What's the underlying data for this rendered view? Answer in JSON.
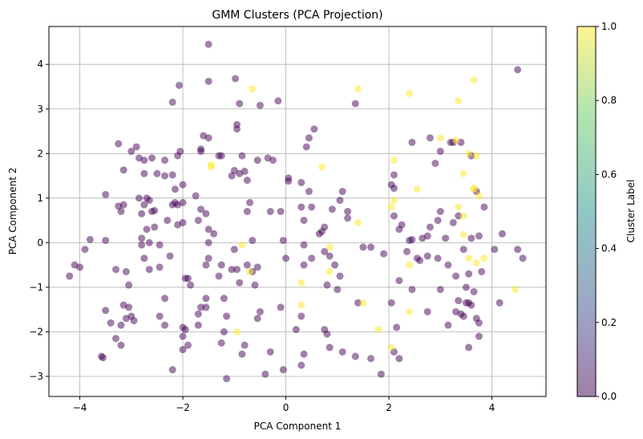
{
  "chart_data": {
    "type": "scatter",
    "title": "GMM Clusters (PCA Projection)",
    "xlabel": "PCA Component 1",
    "ylabel": "PCA Component 2",
    "xlim": [
      -4.6,
      5.05
    ],
    "ylim": [
      -3.45,
      4.85
    ],
    "xticks": [
      -4,
      -2,
      0,
      2,
      4
    ],
    "yticks": [
      -3,
      -2,
      -1,
      0,
      1,
      2,
      3,
      4
    ],
    "grid": true,
    "colorbar": {
      "label": "Cluster Label",
      "range": [
        0,
        1
      ],
      "ticks": [
        "0.0",
        "0.2",
        "0.4",
        "0.6",
        "0.8",
        "1.0"
      ],
      "colormap": "viridis",
      "alpha": 0.5
    },
    "colors": {
      "cluster_0": "#440154",
      "cluster_1": "#fde725"
    },
    "series": [
      {
        "name": "0",
        "points": [
          [
            -1.5,
            4.45
          ],
          [
            -0.98,
            3.68
          ],
          [
            -1.5,
            3.62
          ],
          [
            -2.07,
            3.53
          ],
          [
            -4.2,
            -0.75
          ],
          [
            -4.1,
            -0.5
          ],
          [
            -4.0,
            -0.55
          ],
          [
            -3.9,
            -0.15
          ],
          [
            -3.8,
            0.07
          ],
          [
            -3.5,
            1.08
          ],
          [
            -3.5,
            0.05
          ],
          [
            -3.5,
            -1.52
          ],
          [
            -3.4,
            -1.8
          ],
          [
            -3.58,
            -2.55
          ],
          [
            -3.55,
            -2.58
          ],
          [
            -3.3,
            -2.15
          ],
          [
            -3.2,
            -1.85
          ],
          [
            -3.2,
            -2.3
          ],
          [
            -3.15,
            -1.4
          ],
          [
            -3.1,
            -1.7
          ],
          [
            -3.05,
            -1.45
          ],
          [
            -3.0,
            -1.65
          ],
          [
            -2.95,
            -1.75
          ],
          [
            -3.25,
            0.82
          ],
          [
            -3.2,
            0.7
          ],
          [
            -3.15,
            0.85
          ],
          [
            -3.3,
            -0.6
          ],
          [
            -3.1,
            -0.65
          ],
          [
            -3.05,
            -0.95
          ],
          [
            -3.25,
            2.22
          ],
          [
            -3.0,
            2.05
          ],
          [
            -3.15,
            1.63
          ],
          [
            -2.9,
            2.15
          ],
          [
            -2.85,
            1.9
          ],
          [
            -2.75,
            1.85
          ],
          [
            -2.6,
            1.9
          ],
          [
            -2.75,
            1.55
          ],
          [
            -2.5,
            1.55
          ],
          [
            -2.35,
            1.85
          ],
          [
            -2.2,
            1.52
          ],
          [
            -2.1,
            1.95
          ],
          [
            -2.05,
            2.05
          ],
          [
            -2.35,
            1.5
          ],
          [
            -2.15,
            1.2
          ],
          [
            -2.0,
            1.3
          ],
          [
            -2.1,
            0.85
          ],
          [
            -2.2,
            0.85
          ],
          [
            -2.15,
            0.9
          ],
          [
            -2.3,
            0.5
          ],
          [
            -2.1,
            0.4
          ],
          [
            -2.0,
            0.45
          ],
          [
            -2.0,
            0.9
          ],
          [
            -2.7,
            1.0
          ],
          [
            -2.85,
            1.0
          ],
          [
            -2.65,
            0.95
          ],
          [
            -2.75,
            0.85
          ],
          [
            -2.8,
            0.65
          ],
          [
            -2.6,
            0.7
          ],
          [
            -2.55,
            0.72
          ],
          [
            -2.7,
            0.3
          ],
          [
            -2.55,
            0.35
          ],
          [
            -2.8,
            0.1
          ],
          [
            -2.65,
            0.0
          ],
          [
            -2.45,
            -0.05
          ],
          [
            -2.25,
            -0.3
          ],
          [
            -2.75,
            -0.35
          ],
          [
            -2.8,
            -0.05
          ],
          [
            -2.65,
            -0.6
          ],
          [
            -2.45,
            -0.55
          ],
          [
            -2.35,
            -1.25
          ],
          [
            -2.45,
            -1.65
          ],
          [
            -2.35,
            -1.85
          ],
          [
            -2.0,
            -1.9
          ],
          [
            -2.0,
            -2.1
          ],
          [
            -2.0,
            -2.4
          ],
          [
            -2.2,
            -2.85
          ],
          [
            -1.9,
            -2.3
          ],
          [
            -1.95,
            -1.95
          ],
          [
            -1.7,
            -1.85
          ],
          [
            -1.7,
            -1.6
          ],
          [
            -1.65,
            -1.45
          ],
          [
            -1.55,
            -1.45
          ],
          [
            -1.55,
            -1.25
          ],
          [
            -1.9,
            -0.8
          ],
          [
            -1.95,
            -0.8
          ],
          [
            -1.85,
            -0.95
          ],
          [
            -1.55,
            -0.5
          ],
          [
            -1.5,
            -0.35
          ],
          [
            -1.5,
            0.0
          ],
          [
            -1.4,
            0.2
          ],
          [
            -1.5,
            0.3
          ],
          [
            -1.55,
            0.65
          ],
          [
            -1.65,
            0.75
          ],
          [
            -1.7,
            0.5
          ],
          [
            -1.75,
            1.05
          ],
          [
            -1.65,
            2.1
          ],
          [
            -1.65,
            2.05
          ],
          [
            -1.6,
            2.4
          ],
          [
            -1.5,
            2.35
          ],
          [
            -1.3,
            1.95
          ],
          [
            -1.25,
            1.95
          ],
          [
            -1.05,
            1.5
          ],
          [
            -1.0,
            1.62
          ],
          [
            -0.95,
            2.65
          ],
          [
            -0.95,
            2.55
          ],
          [
            -0.85,
            1.95
          ],
          [
            -0.9,
            1.55
          ],
          [
            -0.8,
            1.6
          ],
          [
            -0.75,
            1.4
          ],
          [
            -0.7,
            0.9
          ],
          [
            -0.75,
            0.7
          ],
          [
            -0.65,
            0.05
          ],
          [
            -0.75,
            -0.5
          ],
          [
            -0.65,
            -0.65
          ],
          [
            -0.55,
            -0.55
          ],
          [
            -0.6,
            -0.95
          ],
          [
            -0.9,
            -0.9
          ],
          [
            -0.95,
            -0.6
          ],
          [
            -1.0,
            -0.15
          ],
          [
            -1.05,
            -0.6
          ],
          [
            -1.25,
            -0.5
          ],
          [
            -1.3,
            -0.75
          ],
          [
            -1.2,
            -1.25
          ],
          [
            -1.15,
            -1.65
          ],
          [
            -1.2,
            -2.0
          ],
          [
            -1.25,
            -2.25
          ],
          [
            -1.15,
            -3.05
          ],
          [
            -0.85,
            -2.5
          ],
          [
            -0.8,
            -2.3
          ],
          [
            -0.5,
            -1.55
          ],
          [
            -0.55,
            -1.7
          ],
          [
            -0.4,
            -2.95
          ],
          [
            -0.3,
            -2.45
          ],
          [
            -0.05,
            -2.85
          ],
          [
            -0.1,
            -1.45
          ],
          [
            0.2,
            -1.95
          ],
          [
            0.3,
            -2.75
          ],
          [
            0.35,
            -2.5
          ],
          [
            0.3,
            -1.65
          ],
          [
            0.35,
            -0.5
          ],
          [
            0.35,
            -0.05
          ],
          [
            0.5,
            -0.35
          ],
          [
            0.75,
            -0.2
          ],
          [
            0.85,
            -0.3
          ],
          [
            0.95,
            -0.5
          ],
          [
            0.8,
            -0.95
          ],
          [
            1.0,
            -1.05
          ],
          [
            1.05,
            -0.75
          ],
          [
            0.75,
            -1.95
          ],
          [
            0.8,
            -2.05
          ],
          [
            0.85,
            -2.35
          ],
          [
            1.1,
            -2.45
          ],
          [
            1.4,
            -1.35
          ],
          [
            1.35,
            -2.55
          ],
          [
            1.65,
            -2.6
          ],
          [
            1.85,
            -2.95
          ],
          [
            2.05,
            -1.35
          ],
          [
            2.15,
            -1.9
          ],
          [
            2.1,
            -2.45
          ],
          [
            2.2,
            -2.6
          ],
          [
            2.2,
            -0.85
          ],
          [
            2.45,
            -1.05
          ],
          [
            2.35,
            -0.2
          ],
          [
            2.45,
            0.07
          ],
          [
            2.4,
            0.05
          ],
          [
            2.55,
            -0.35
          ],
          [
            2.6,
            -0.4
          ],
          [
            2.75,
            -0.3
          ],
          [
            2.75,
            -1.55
          ],
          [
            2.95,
            -0.35
          ],
          [
            3.0,
            -1.05
          ],
          [
            3.15,
            -1.85
          ],
          [
            3.15,
            -0.5
          ],
          [
            3.3,
            -1.55
          ],
          [
            3.35,
            -1.3
          ],
          [
            3.4,
            -1.6
          ],
          [
            3.45,
            -1.65
          ],
          [
            3.5,
            -1.35
          ],
          [
            3.5,
            -1.0
          ],
          [
            3.55,
            -1.35
          ],
          [
            3.55,
            -2.35
          ],
          [
            3.6,
            -1.4
          ],
          [
            3.65,
            -1.1
          ],
          [
            3.7,
            -1.7
          ],
          [
            3.75,
            -1.8
          ],
          [
            3.75,
            -2.1
          ],
          [
            3.8,
            -0.65
          ],
          [
            3.55,
            -0.7
          ],
          [
            3.3,
            -0.75
          ],
          [
            3.45,
            -0.15
          ],
          [
            3.6,
            0.1
          ],
          [
            3.75,
            0.15
          ],
          [
            3.85,
            0.8
          ],
          [
            3.7,
            1.15
          ],
          [
            3.6,
            1.95
          ],
          [
            3.4,
            2.25
          ],
          [
            3.25,
            2.25
          ],
          [
            3.2,
            2.25
          ],
          [
            3.0,
            2.05
          ],
          [
            2.95,
            0.5
          ],
          [
            3.0,
            0.7
          ],
          [
            3.1,
            0.1
          ],
          [
            3.25,
            0.45
          ],
          [
            3.35,
            0.6
          ],
          [
            2.8,
            0.35
          ],
          [
            2.75,
            0.15
          ],
          [
            2.65,
            0.1
          ],
          [
            2.2,
            0.3
          ],
          [
            2.25,
            0.4
          ],
          [
            2.1,
            0.6
          ],
          [
            2.1,
            1.22
          ],
          [
            2.1,
            1.52
          ],
          [
            2.05,
            1.3
          ],
          [
            2.45,
            2.25
          ],
          [
            2.8,
            2.35
          ],
          [
            2.9,
            1.78
          ],
          [
            4.2,
            0.2
          ],
          [
            4.05,
            -0.15
          ],
          [
            4.15,
            -1.35
          ],
          [
            4.5,
            -0.15
          ],
          [
            4.6,
            -0.35
          ],
          [
            4.5,
            3.88
          ],
          [
            1.35,
            3.12
          ],
          [
            1.1,
            1.15
          ],
          [
            1.05,
            0.95
          ],
          [
            1.2,
            0.55
          ],
          [
            1.2,
            0.7
          ],
          [
            1.5,
            -0.1
          ],
          [
            1.65,
            -0.1
          ],
          [
            1.9,
            -0.25
          ],
          [
            0.9,
            0.75
          ],
          [
            0.75,
            0.35
          ],
          [
            0.7,
            0.25
          ],
          [
            0.65,
            0.2
          ],
          [
            0.55,
            2.55
          ],
          [
            0.45,
            2.35
          ],
          [
            0.4,
            2.15
          ],
          [
            0.3,
            1.35
          ],
          [
            0.45,
            1.15
          ],
          [
            0.5,
            0.8
          ],
          [
            0.3,
            0.8
          ],
          [
            0.35,
            0.5
          ],
          [
            0.05,
            1.38
          ],
          [
            0.05,
            1.45
          ],
          [
            -0.05,
            0.05
          ],
          [
            -0.1,
            0.7
          ],
          [
            -0.3,
            0.7
          ],
          [
            -0.25,
            1.85
          ],
          [
            -0.55,
            1.85
          ],
          [
            -0.35,
            1.9
          ],
          [
            -0.5,
            3.08
          ],
          [
            -0.15,
            3.18
          ],
          [
            -0.9,
            3.12
          ],
          [
            -2.2,
            3.15
          ],
          [
            0.0,
            -0.35
          ]
        ]
      },
      {
        "name": "1",
        "points": [
          [
            -0.65,
            3.45
          ],
          [
            1.4,
            3.45
          ],
          [
            2.4,
            3.35
          ],
          [
            3.65,
            3.65
          ],
          [
            3.35,
            3.18
          ],
          [
            3.0,
            2.35
          ],
          [
            3.3,
            2.3
          ],
          [
            3.55,
            2.0
          ],
          [
            3.7,
            1.95
          ],
          [
            2.1,
            1.85
          ],
          [
            3.45,
            1.55
          ],
          [
            3.65,
            1.22
          ],
          [
            3.65,
            1.2
          ],
          [
            3.75,
            1.05
          ],
          [
            2.55,
            1.2
          ],
          [
            2.1,
            0.95
          ],
          [
            2.05,
            0.8
          ],
          [
            3.35,
            0.8
          ],
          [
            3.45,
            0.18
          ],
          [
            1.4,
            0.45
          ],
          [
            -1.45,
            1.75
          ],
          [
            -1.45,
            1.7
          ],
          [
            0.7,
            1.7
          ],
          [
            0.85,
            -0.1
          ],
          [
            -0.85,
            -0.05
          ],
          [
            3.55,
            -0.35
          ],
          [
            3.7,
            -0.45
          ],
          [
            3.85,
            -0.35
          ],
          [
            3.45,
            0.6
          ],
          [
            2.4,
            -0.5
          ],
          [
            0.85,
            -0.65
          ],
          [
            0.3,
            -0.9
          ],
          [
            -0.7,
            -0.65
          ],
          [
            4.45,
            -1.05
          ],
          [
            1.5,
            -1.35
          ],
          [
            0.3,
            -1.4
          ],
          [
            2.4,
            -1.55
          ],
          [
            -0.95,
            -2.0
          ],
          [
            1.8,
            -1.95
          ],
          [
            2.05,
            -2.35
          ]
        ]
      }
    ]
  }
}
